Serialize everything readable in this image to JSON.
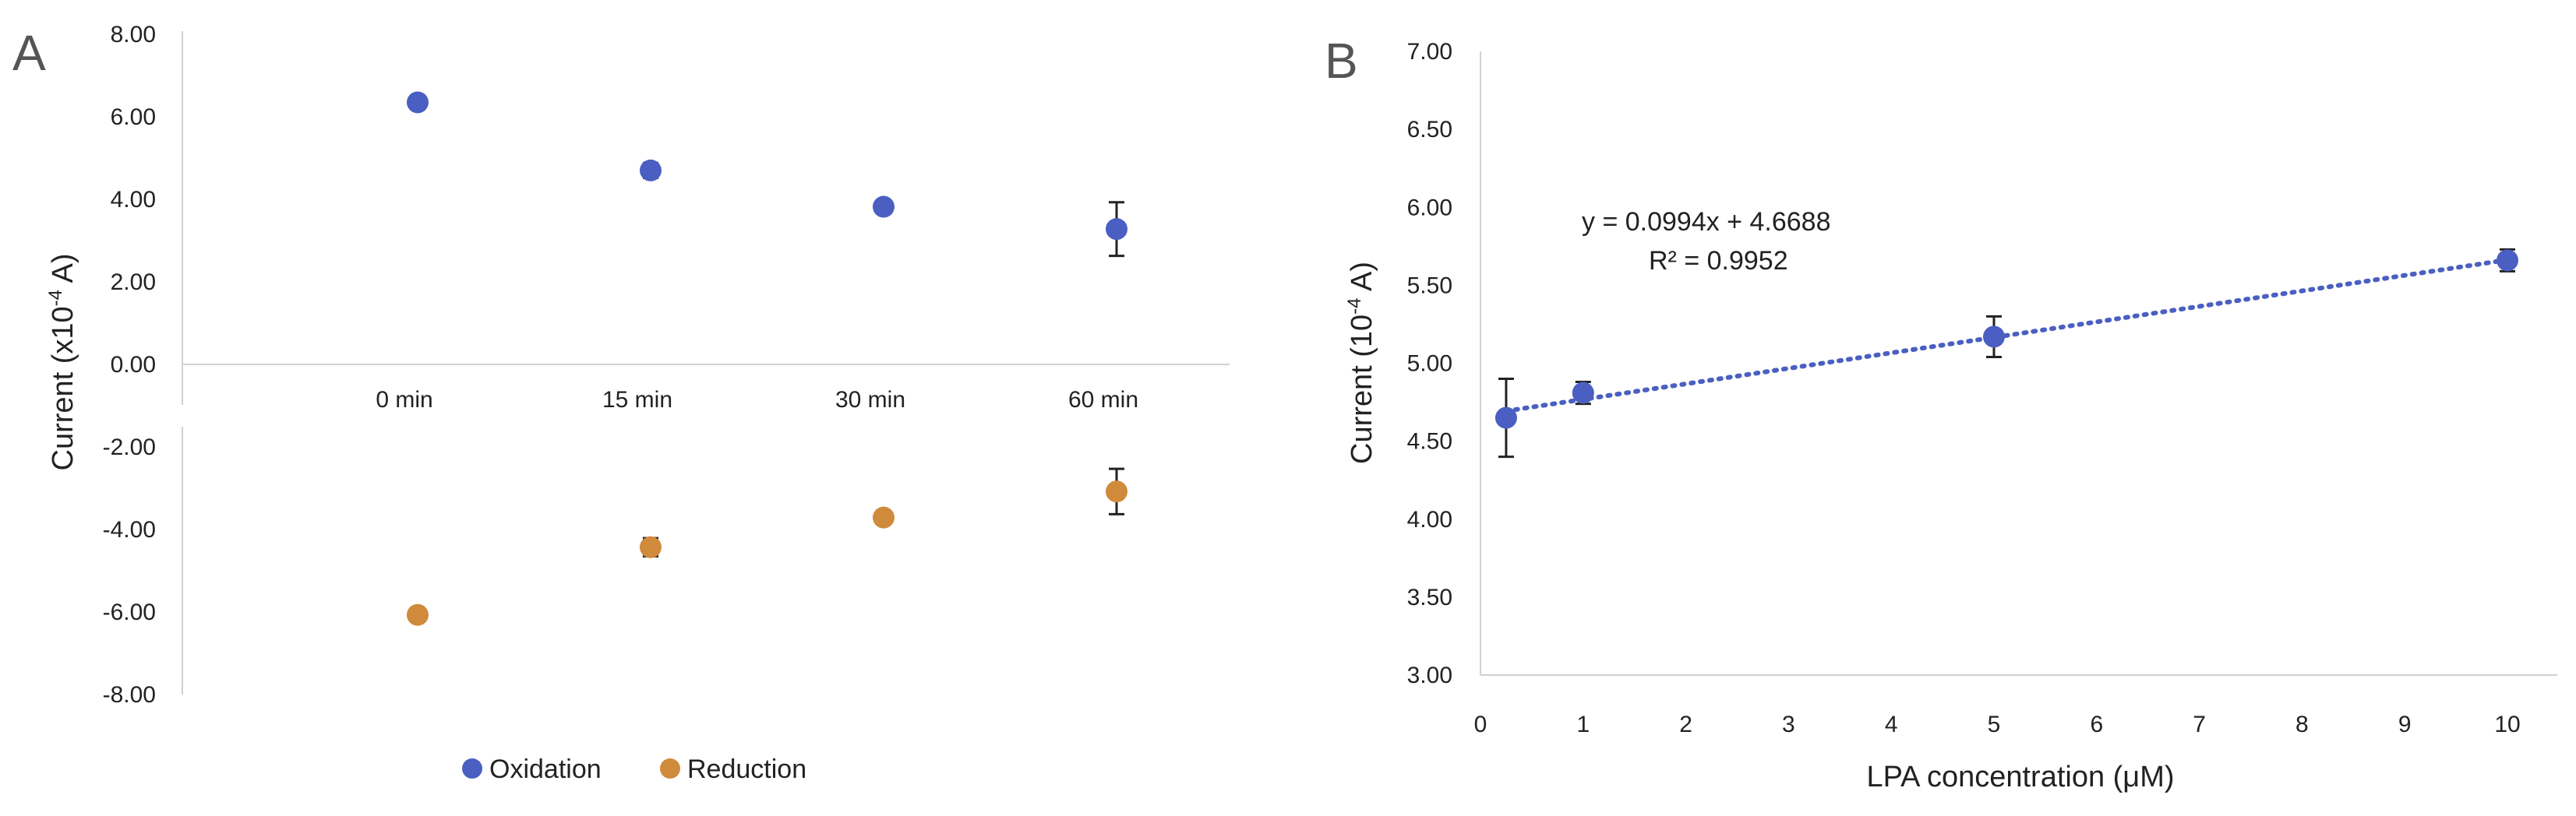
{
  "chart_data": [
    {
      "panel": "A",
      "type": "scatter",
      "categories": [
        "0 min",
        "15 min",
        "30 min",
        "60 min"
      ],
      "ylabel_main": "Current (x10",
      "ylabel_sup": "-4",
      "ylabel_end": " A)",
      "ylim": [
        -8,
        8
      ],
      "yticks": [
        "8.00",
        "6.00",
        "4.00",
        "2.00",
        "0.00",
        "-2.00",
        "-4.00",
        "-6.00",
        "-8.00"
      ],
      "series": [
        {
          "name": "Oxidation",
          "color": "#4a5fc1",
          "values": [
            6.35,
            4.7,
            3.82,
            3.28
          ],
          "errors": [
            0.05,
            0.18,
            0.05,
            0.65
          ]
        },
        {
          "name": "Reduction",
          "color": "#d08a3c",
          "values": [
            -6.07,
            -4.43,
            -3.71,
            -3.08
          ],
          "errors": [
            0.05,
            0.22,
            0.05,
            0.55
          ]
        }
      ],
      "legend_position": "bottom-center"
    },
    {
      "panel": "B",
      "type": "scatter",
      "xlabel": "LPA concentration (μM)",
      "ylabel_main": "Current (10",
      "ylabel_sup": "-4",
      "ylabel_end": " A)",
      "xlim": [
        0,
        10
      ],
      "ylim": [
        3,
        7
      ],
      "xticks": [
        "0",
        "1",
        "2",
        "3",
        "4",
        "5",
        "6",
        "7",
        "8",
        "9",
        "10"
      ],
      "yticks": [
        "7.00",
        "6.50",
        "6.00",
        "5.50",
        "5.00",
        "4.50",
        "4.00",
        "3.50",
        "3.00"
      ],
      "series": [
        {
          "name": "Current",
          "color": "#4a5fc1",
          "x": [
            0.25,
            1,
            5,
            10
          ],
          "values": [
            4.65,
            4.81,
            5.17,
            5.66
          ],
          "errors": [
            0.25,
            0.07,
            0.13,
            0.07
          ]
        }
      ],
      "trendline": {
        "slope": 0.0994,
        "intercept": 4.6688,
        "x_range": [
          0.25,
          10
        ],
        "color": "#4a5fc1"
      },
      "equation": "y = 0.0994x + 4.6688",
      "r2": "R² = 0.9952"
    }
  ]
}
